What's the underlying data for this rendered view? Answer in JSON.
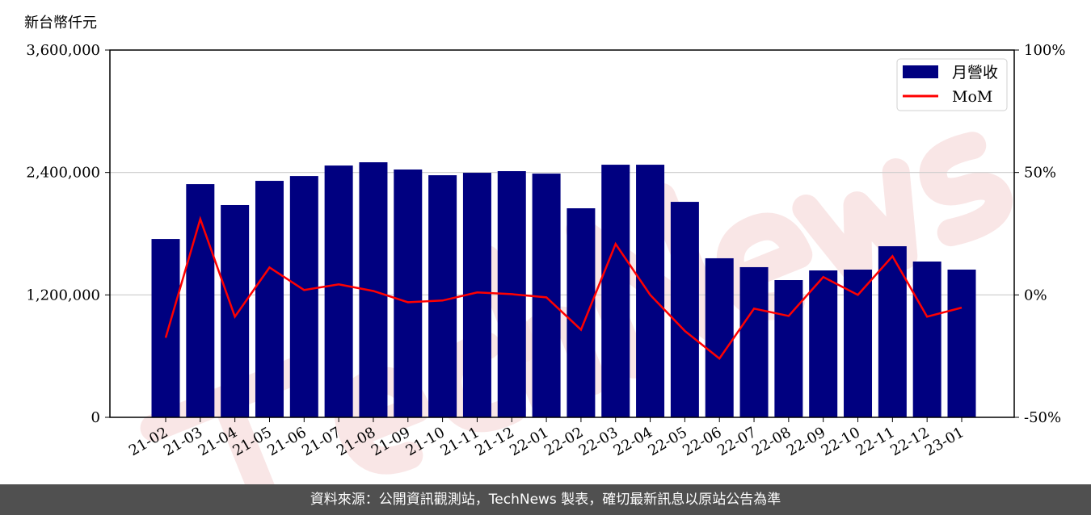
{
  "chart_data": {
    "type": "bar+line",
    "unit_label": "新台幣仟元",
    "categories": [
      "21-02",
      "21-03",
      "21-04",
      "21-05",
      "21-06",
      "21-07",
      "21-08",
      "21-09",
      "21-10",
      "21-11",
      "21-12",
      "22-01",
      "22-02",
      "22-03",
      "22-04",
      "22-05",
      "22-06",
      "22-07",
      "22-08",
      "22-09",
      "22-10",
      "22-11",
      "22-12",
      "23-01"
    ],
    "series": [
      {
        "name": "月營收",
        "type": "bar",
        "axis": "left",
        "color": "#000080",
        "values": [
          1748000,
          2286000,
          2081000,
          2318000,
          2365000,
          2468000,
          2500000,
          2429000,
          2373000,
          2397000,
          2413000,
          2389000,
          2049000,
          2476000,
          2476000,
          2112000,
          1559000,
          1472000,
          1345000,
          1440000,
          1448000,
          1677000,
          1527000,
          1448000
        ]
      },
      {
        "name": "MoM",
        "type": "line",
        "axis": "right",
        "color": "#ff0000",
        "values": [
          -17.5,
          31.0,
          -8.9,
          11.2,
          2.0,
          4.3,
          1.6,
          -3.0,
          -2.3,
          1.0,
          0.3,
          -1.0,
          -14.2,
          20.8,
          0.0,
          -14.7,
          -26.0,
          -5.6,
          -8.6,
          7.3,
          0.0,
          15.8,
          -8.9,
          -5.2
        ]
      }
    ],
    "left_axis": {
      "ylim": [
        0,
        3600000
      ],
      "ticks": [
        0,
        1200000,
        2400000,
        3600000
      ],
      "tick_labels": [
        "0",
        "1,200,000",
        "2,400,000",
        "3,600,000"
      ]
    },
    "right_axis": {
      "ylim": [
        -50,
        100
      ],
      "ticks": [
        -50,
        0,
        50,
        100
      ],
      "tick_labels": [
        "-50%",
        "0%",
        "50%",
        "100%"
      ]
    },
    "grid": "horizontal",
    "legend_position": "top-right",
    "watermark": "TechNews"
  },
  "footer": {
    "source": "資料來源：公開資訊觀測站，TechNews 製表，確切最新訊息以原站公告為準"
  }
}
